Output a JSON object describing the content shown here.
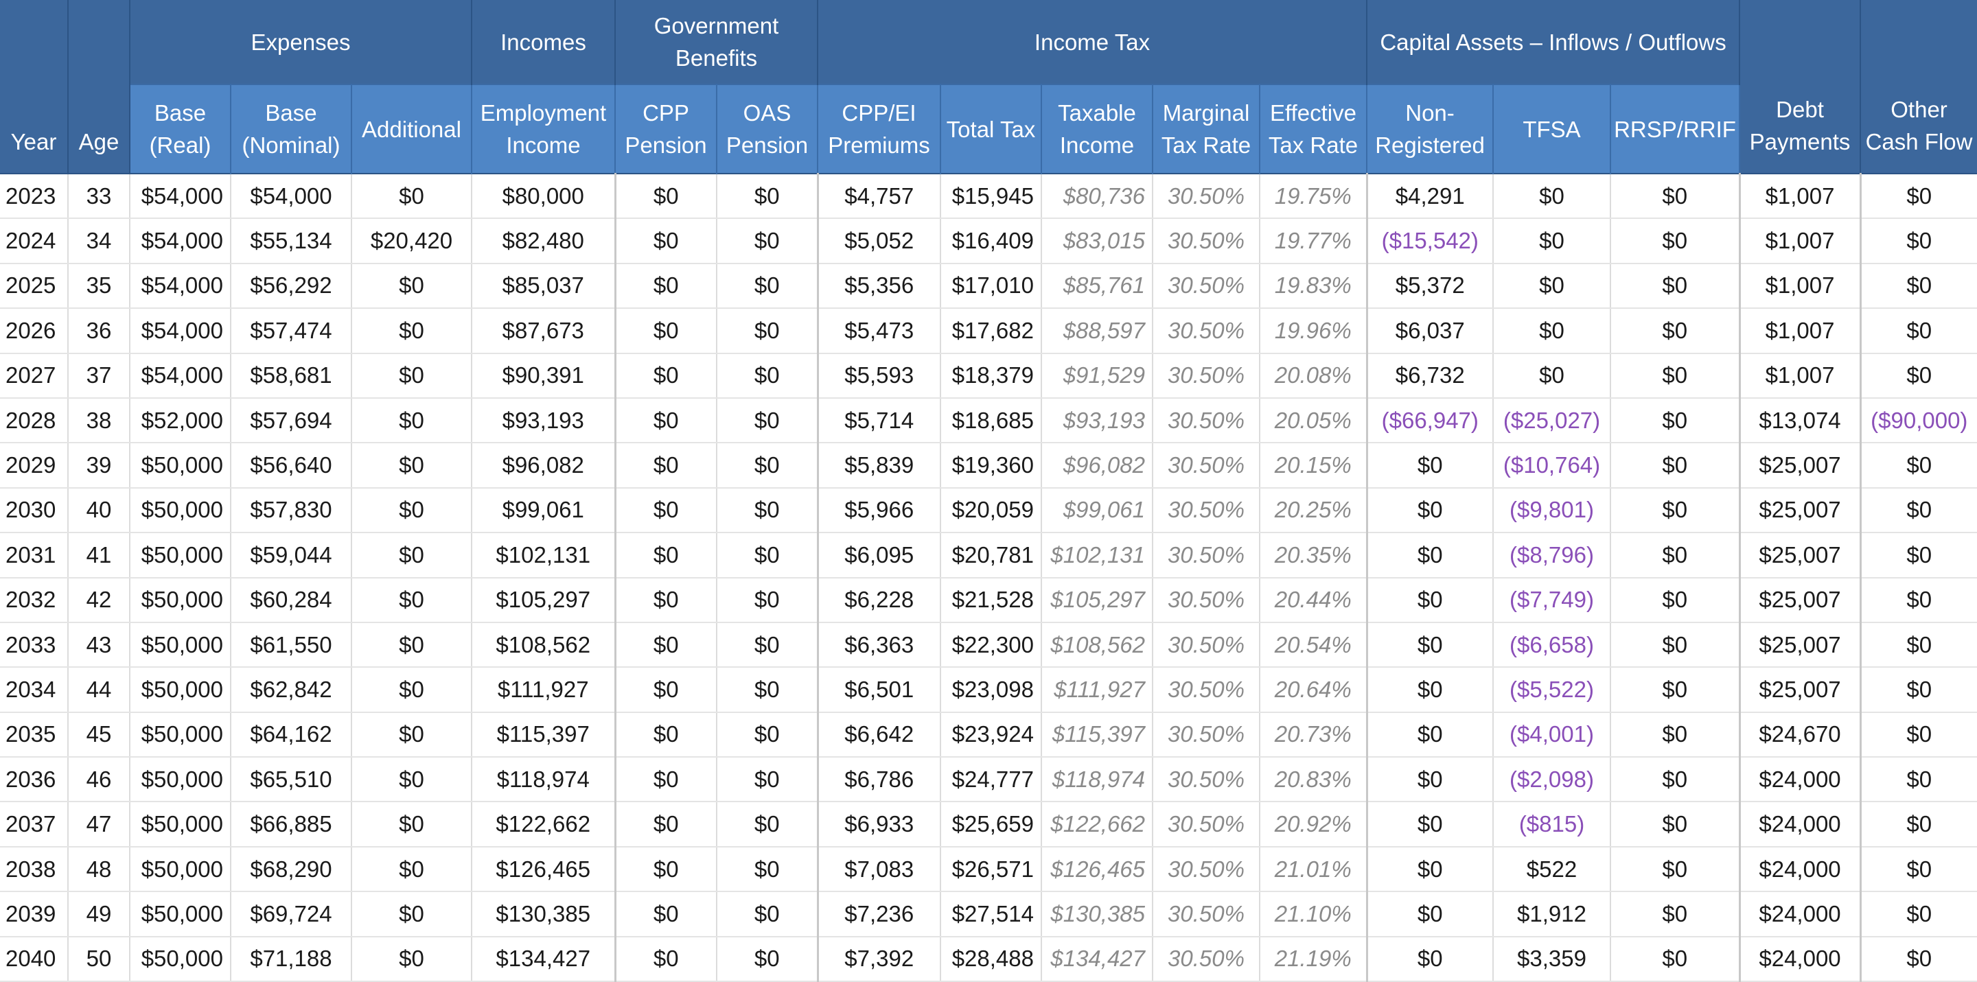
{
  "headers": {
    "year": "Year",
    "age": "Age",
    "groups": {
      "expenses": "Expenses",
      "incomes": "Incomes",
      "gov_benefits": "Government Benefits",
      "income_tax": "Income Tax",
      "capital_assets": "Capital Assets – Inflows / Outflows"
    },
    "cols": {
      "base_real": "Base (Real)",
      "base_nominal": "Base (Nominal)",
      "additional": "Additional",
      "employment_income": "Employment Income",
      "cpp_pension": "CPP Pension",
      "oas_pension": "OAS Pension",
      "cpp_ei_premiums": "CPP/EI Premiums",
      "total_tax": "Total Tax",
      "taxable_income": "Taxable Income",
      "marginal_tax_rate": "Marginal Tax Rate",
      "effective_tax_rate": "Effective Tax Rate",
      "non_registered": "Non-Registered",
      "tfsa": "TFSA",
      "rrsp_rrif": "RRSP/RRIF"
    },
    "debt_payments": "Debt Payments",
    "other_cash_flow": "Other Cash Flow"
  },
  "colors": {
    "header_dark": "#3c679c",
    "header_light": "#4f86c6",
    "negative_text": "#8a4fb8",
    "muted_italic_text": "#8a8a8a"
  },
  "rows": [
    [
      "2023",
      "33",
      "$54,000",
      "$54,000",
      "$0",
      "$80,000",
      "$0",
      "$0",
      "$4,757",
      "$15,945",
      "$80,736",
      "30.50%",
      "19.75%",
      "$4,291",
      "$0",
      "$0",
      "$1,007",
      "$0"
    ],
    [
      "2024",
      "34",
      "$54,000",
      "$55,134",
      "$20,420",
      "$82,480",
      "$0",
      "$0",
      "$5,052",
      "$16,409",
      "$83,015",
      "30.50%",
      "19.77%",
      "($15,542)",
      "$0",
      "$0",
      "$1,007",
      "$0"
    ],
    [
      "2025",
      "35",
      "$54,000",
      "$56,292",
      "$0",
      "$85,037",
      "$0",
      "$0",
      "$5,356",
      "$17,010",
      "$85,761",
      "30.50%",
      "19.83%",
      "$5,372",
      "$0",
      "$0",
      "$1,007",
      "$0"
    ],
    [
      "2026",
      "36",
      "$54,000",
      "$57,474",
      "$0",
      "$87,673",
      "$0",
      "$0",
      "$5,473",
      "$17,682",
      "$88,597",
      "30.50%",
      "19.96%",
      "$6,037",
      "$0",
      "$0",
      "$1,007",
      "$0"
    ],
    [
      "2027",
      "37",
      "$54,000",
      "$58,681",
      "$0",
      "$90,391",
      "$0",
      "$0",
      "$5,593",
      "$18,379",
      "$91,529",
      "30.50%",
      "20.08%",
      "$6,732",
      "$0",
      "$0",
      "$1,007",
      "$0"
    ],
    [
      "2028",
      "38",
      "$52,000",
      "$57,694",
      "$0",
      "$93,193",
      "$0",
      "$0",
      "$5,714",
      "$18,685",
      "$93,193",
      "30.50%",
      "20.05%",
      "($66,947)",
      "($25,027)",
      "$0",
      "$13,074",
      "($90,000)"
    ],
    [
      "2029",
      "39",
      "$50,000",
      "$56,640",
      "$0",
      "$96,082",
      "$0",
      "$0",
      "$5,839",
      "$19,360",
      "$96,082",
      "30.50%",
      "20.15%",
      "$0",
      "($10,764)",
      "$0",
      "$25,007",
      "$0"
    ],
    [
      "2030",
      "40",
      "$50,000",
      "$57,830",
      "$0",
      "$99,061",
      "$0",
      "$0",
      "$5,966",
      "$20,059",
      "$99,061",
      "30.50%",
      "20.25%",
      "$0",
      "($9,801)",
      "$0",
      "$25,007",
      "$0"
    ],
    [
      "2031",
      "41",
      "$50,000",
      "$59,044",
      "$0",
      "$102,131",
      "$0",
      "$0",
      "$6,095",
      "$20,781",
      "$102,131",
      "30.50%",
      "20.35%",
      "$0",
      "($8,796)",
      "$0",
      "$25,007",
      "$0"
    ],
    [
      "2032",
      "42",
      "$50,000",
      "$60,284",
      "$0",
      "$105,297",
      "$0",
      "$0",
      "$6,228",
      "$21,528",
      "$105,297",
      "30.50%",
      "20.44%",
      "$0",
      "($7,749)",
      "$0",
      "$25,007",
      "$0"
    ],
    [
      "2033",
      "43",
      "$50,000",
      "$61,550",
      "$0",
      "$108,562",
      "$0",
      "$0",
      "$6,363",
      "$22,300",
      "$108,562",
      "30.50%",
      "20.54%",
      "$0",
      "($6,658)",
      "$0",
      "$25,007",
      "$0"
    ],
    [
      "2034",
      "44",
      "$50,000",
      "$62,842",
      "$0",
      "$111,927",
      "$0",
      "$0",
      "$6,501",
      "$23,098",
      "$111,927",
      "30.50%",
      "20.64%",
      "$0",
      "($5,522)",
      "$0",
      "$25,007",
      "$0"
    ],
    [
      "2035",
      "45",
      "$50,000",
      "$64,162",
      "$0",
      "$115,397",
      "$0",
      "$0",
      "$6,642",
      "$23,924",
      "$115,397",
      "30.50%",
      "20.73%",
      "$0",
      "($4,001)",
      "$0",
      "$24,670",
      "$0"
    ],
    [
      "2036",
      "46",
      "$50,000",
      "$65,510",
      "$0",
      "$118,974",
      "$0",
      "$0",
      "$6,786",
      "$24,777",
      "$118,974",
      "30.50%",
      "20.83%",
      "$0",
      "($2,098)",
      "$0",
      "$24,000",
      "$0"
    ],
    [
      "2037",
      "47",
      "$50,000",
      "$66,885",
      "$0",
      "$122,662",
      "$0",
      "$0",
      "$6,933",
      "$25,659",
      "$122,662",
      "30.50%",
      "20.92%",
      "$0",
      "($815)",
      "$0",
      "$24,000",
      "$0"
    ],
    [
      "2038",
      "48",
      "$50,000",
      "$68,290",
      "$0",
      "$126,465",
      "$0",
      "$0",
      "$7,083",
      "$26,571",
      "$126,465",
      "30.50%",
      "21.01%",
      "$0",
      "$522",
      "$0",
      "$24,000",
      "$0"
    ],
    [
      "2039",
      "49",
      "$50,000",
      "$69,724",
      "$0",
      "$130,385",
      "$0",
      "$0",
      "$7,236",
      "$27,514",
      "$130,385",
      "30.50%",
      "21.10%",
      "$0",
      "$1,912",
      "$0",
      "$24,000",
      "$0"
    ],
    [
      "2040",
      "50",
      "$50,000",
      "$71,188",
      "$0",
      "$134,427",
      "$0",
      "$0",
      "$7,392",
      "$28,488",
      "$134,427",
      "30.50%",
      "21.19%",
      "$0",
      "$3,359",
      "$0",
      "$24,000",
      "$0"
    ]
  ]
}
